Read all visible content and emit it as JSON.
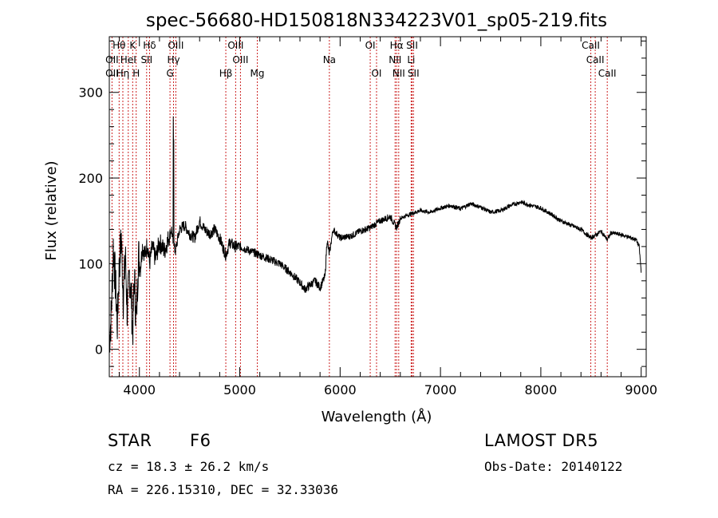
{
  "chart_data": {
    "type": "line",
    "title": "spec-56680-HD150818N334223V01_sp05-219.fits",
    "xlabel": "Wavelength (Å)",
    "ylabel": "Flux (relative)",
    "xlim": [
      3700,
      9050
    ],
    "ylim": [
      -32,
      365
    ],
    "x_ticks": [
      4000,
      5000,
      6000,
      7000,
      8000,
      9000
    ],
    "y_ticks": [
      0,
      100,
      200,
      300
    ],
    "grid": false,
    "series": [
      {
        "x": [
          3700,
          3720,
          3740,
          3760,
          3780,
          3800,
          3820,
          3840,
          3860,
          3880,
          3900,
          3920,
          3933,
          3950,
          3968,
          3990,
          4010,
          4030,
          4060,
          4080,
          4101,
          4130,
          4160,
          4200,
          4250,
          4290,
          4320,
          4340,
          4360,
          4400,
          4450,
          4500,
          4550,
          4600,
          4650,
          4700,
          4750,
          4800,
          4861,
          4900,
          4950,
          5000,
          5100,
          5200,
          5300,
          5400,
          5500,
          5600,
          5650,
          5700,
          5750,
          5800,
          5850,
          5870,
          5893,
          5910,
          5930,
          6000,
          6100,
          6200,
          6300,
          6400,
          6500,
          6563,
          6600,
          6700,
          6800,
          6900,
          7000,
          7100,
          7200,
          7300,
          7400,
          7500,
          7600,
          7700,
          7800,
          7850,
          7900,
          8000,
          8100,
          8200,
          8300,
          8400,
          8498,
          8542,
          8600,
          8662,
          8700,
          8800,
          8900,
          8950,
          8980,
          9000
        ],
        "y": [
          10,
          40,
          120,
          80,
          30,
          100,
          130,
          60,
          110,
          40,
          90,
          60,
          20,
          85,
          30,
          110,
          95,
          120,
          110,
          125,
          100,
          120,
          105,
          125,
          115,
          130,
          140,
          120,
          115,
          140,
          145,
          135,
          130,
          150,
          140,
          135,
          140,
          130,
          110,
          125,
          120,
          120,
          115,
          110,
          105,
          100,
          90,
          78,
          70,
          75,
          80,
          72,
          85,
          128,
          110,
          125,
          140,
          130,
          132,
          138,
          142,
          150,
          155,
          142,
          153,
          158,
          162,
          160,
          165,
          168,
          164,
          170,
          166,
          160,
          162,
          168,
          172,
          170,
          168,
          165,
          158,
          150,
          145,
          140,
          130,
          133,
          138,
          128,
          136,
          134,
          130,
          128,
          120,
          90
        ]
      }
    ],
    "spectral_lines": [
      {
        "label": "Hθ",
        "x": 3798,
        "row": 0
      },
      {
        "label": "K",
        "x": 3933,
        "row": 0
      },
      {
        "label": "Hδ",
        "x": 4101,
        "row": 0
      },
      {
        "label": "OIII",
        "x": 4363,
        "row": 0
      },
      {
        "label": "OIII",
        "x": 4959,
        "row": 0
      },
      {
        "label": "OI",
        "x": 6300,
        "row": 0
      },
      {
        "label": "Hα",
        "x": 6563,
        "row": 0
      },
      {
        "label": "SII",
        "x": 6717,
        "row": 0
      },
      {
        "label": "CaII",
        "x": 8498,
        "row": 0
      },
      {
        "label": "OII",
        "x": 3727,
        "row": 1
      },
      {
        "label": "HeI",
        "x": 3889,
        "row": 1
      },
      {
        "label": "SII",
        "x": 4072,
        "row": 1
      },
      {
        "label": "Hγ",
        "x": 4340,
        "row": 1
      },
      {
        "label": "OIII",
        "x": 5007,
        "row": 1
      },
      {
        "label": "Na",
        "x": 5893,
        "row": 1
      },
      {
        "label": "NII",
        "x": 6548,
        "row": 1
      },
      {
        "label": "Li",
        "x": 6708,
        "row": 1
      },
      {
        "label": "CaII",
        "x": 8542,
        "row": 1
      },
      {
        "label": "OII",
        "x": 3727,
        "row": 2
      },
      {
        "label": "Hη",
        "x": 3835,
        "row": 2
      },
      {
        "label": "H",
        "x": 3968,
        "row": 2
      },
      {
        "label": "G",
        "x": 4305,
        "row": 2
      },
      {
        "label": "Hβ",
        "x": 4861,
        "row": 2
      },
      {
        "label": "Mg",
        "x": 5175,
        "row": 2
      },
      {
        "label": "OI",
        "x": 6363,
        "row": 2
      },
      {
        "label": "NII",
        "x": 6584,
        "row": 2
      },
      {
        "label": "SII",
        "x": 6731,
        "row": 2
      },
      {
        "label": "CaII",
        "x": 8662,
        "row": 2
      }
    ]
  },
  "info": {
    "object_class": "STAR",
    "subclass": "F6",
    "survey": "LAMOST DR5",
    "redshift": "cz = 18.3 ± 26.2 km/s",
    "obs_date": "Obs-Date: 20140122",
    "coords": "RA = 226.15310, DEC =  32.33036"
  },
  "colors": {
    "spectrum": "#000000",
    "line_markers": "#cc2222",
    "background": "#ffffff"
  }
}
